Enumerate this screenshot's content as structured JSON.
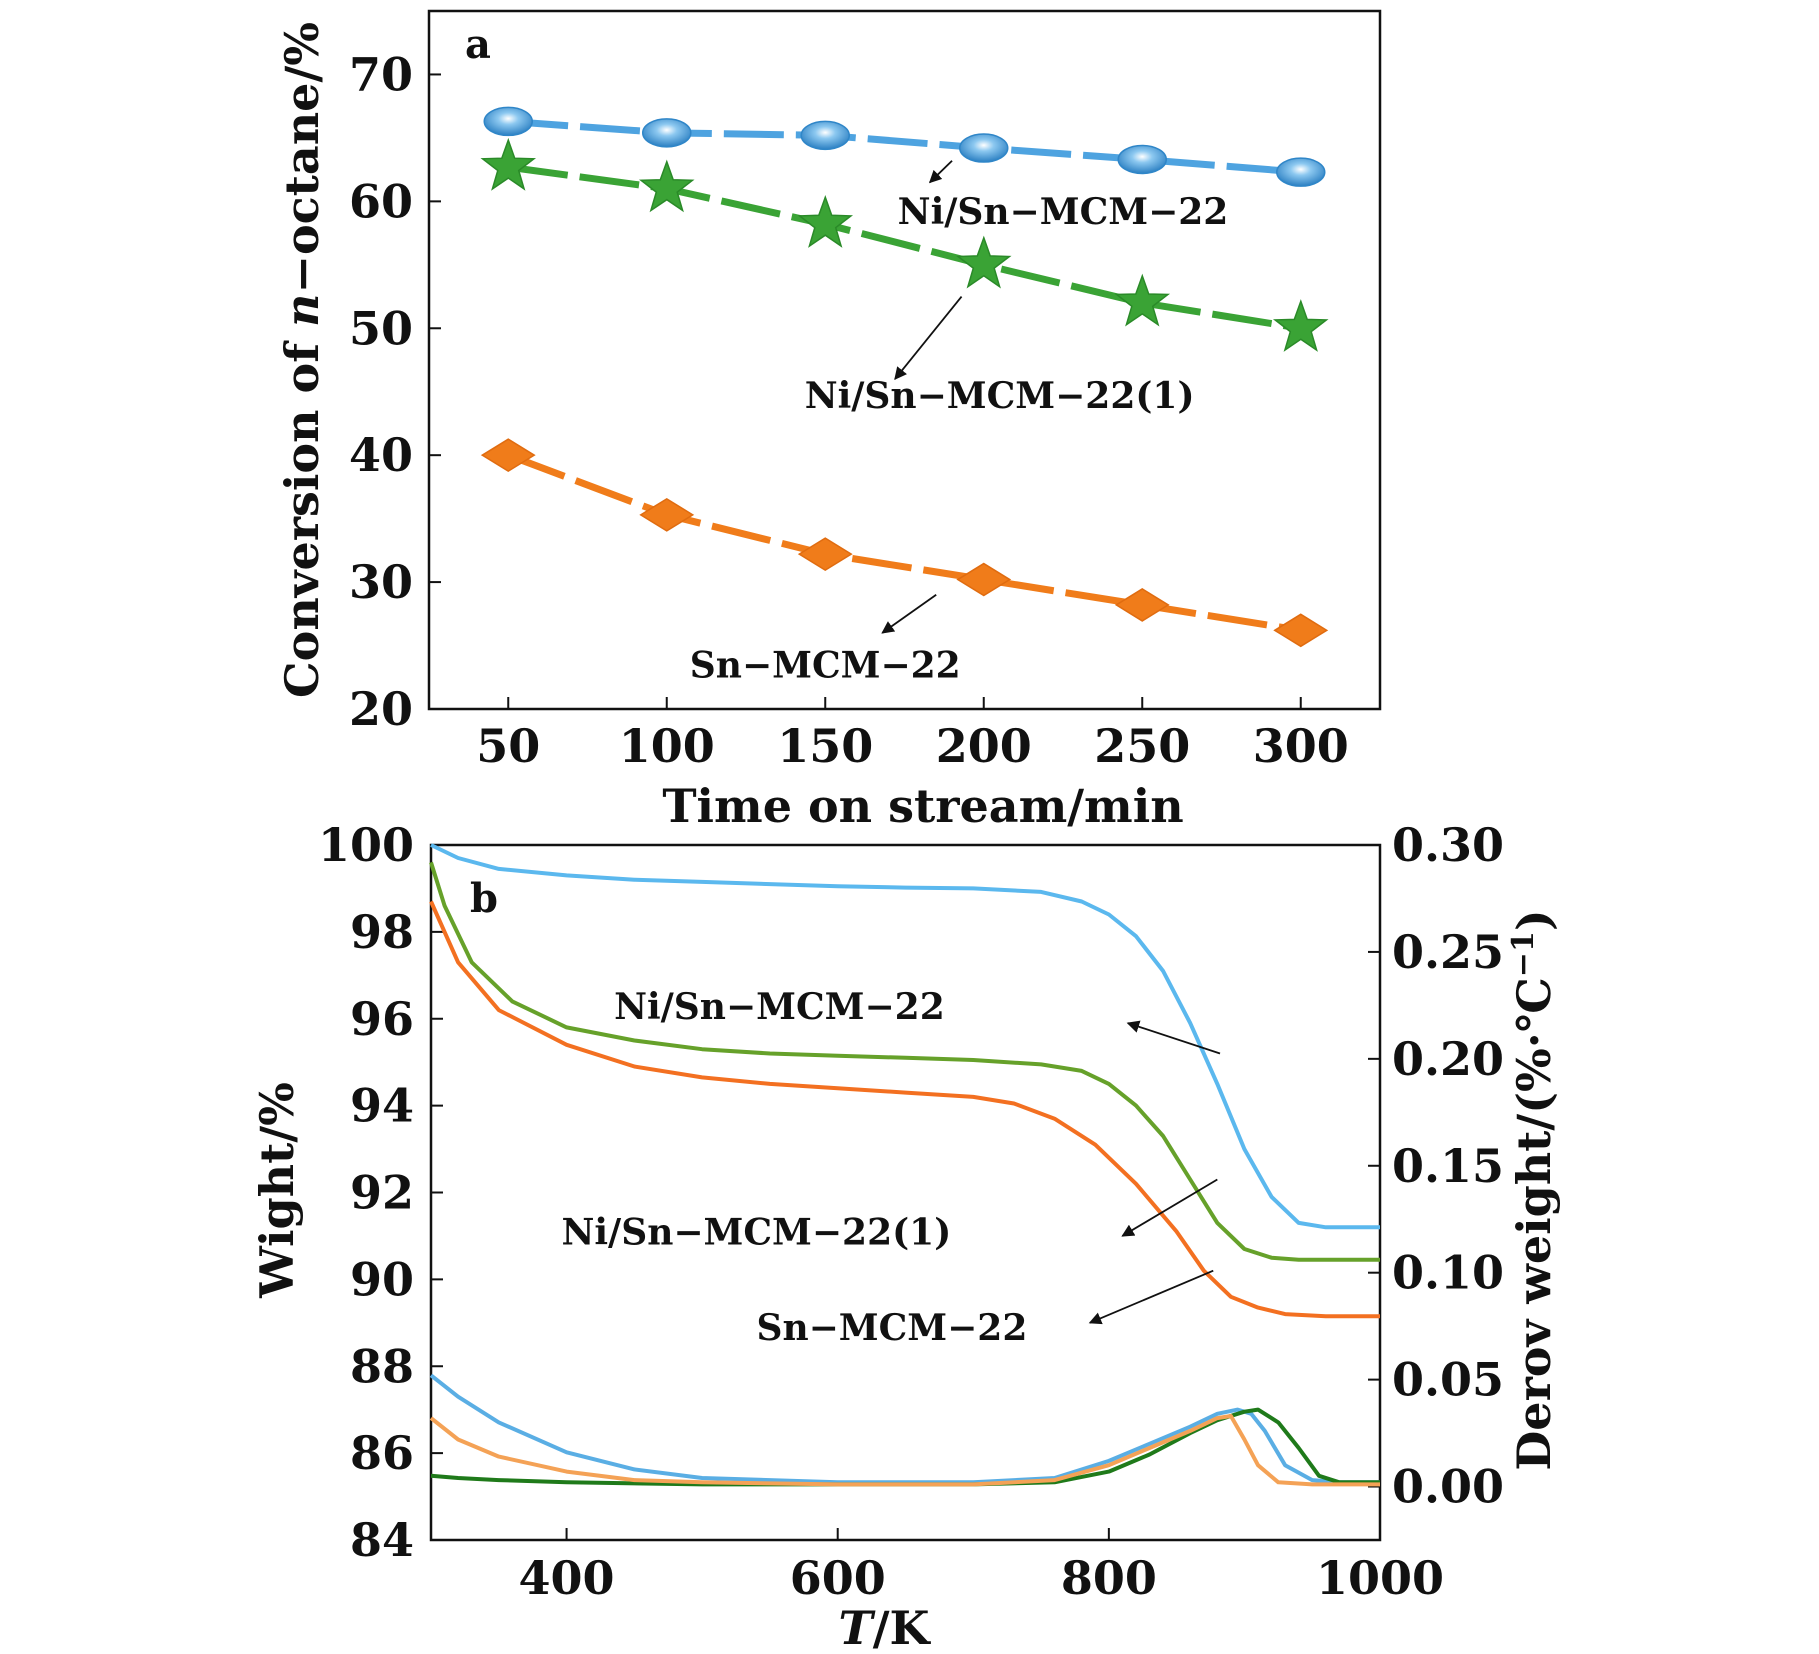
{
  "colors": {
    "ni_sn": "#4ea3e0",
    "ni_sn_1": "#3aa335",
    "sn": "#f07c1a",
    "deriv_ni_sn": "#5aaee4",
    "deriv_ni_sn_1": "#1f7a1a",
    "deriv_sn": "#f4a256",
    "wt_ni_sn": "#5bb8ee",
    "wt_ni_sn_1": "#66a12a",
    "wt_sn": "#f37021"
  },
  "chart_data": [
    {
      "panel": "a",
      "type": "line",
      "xlabel": "Time on stream/min",
      "ylabel_parts": [
        "Conversion of ",
        "n",
        "−octane/%"
      ],
      "xlim": [
        25,
        325
      ],
      "ylim": [
        20,
        75
      ],
      "xticks": [
        50,
        100,
        150,
        200,
        250,
        300
      ],
      "yticks": [
        20,
        30,
        40,
        50,
        60,
        70
      ],
      "x": [
        50,
        100,
        150,
        200,
        250,
        300
      ],
      "series": [
        {
          "name": "Ni/Sn−MCM−22",
          "marker": "circle",
          "color_key": "ni_sn",
          "values": [
            66.3,
            65.4,
            65.2,
            64.2,
            63.3,
            62.3
          ]
        },
        {
          "name": "Ni/Sn−MCM−22(1)",
          "marker": "star",
          "color_key": "ni_sn_1",
          "values": [
            62.7,
            61.0,
            58.2,
            55.0,
            52.0,
            50.0
          ]
        },
        {
          "name": "Sn−MCM−22",
          "marker": "diamond",
          "color_key": "sn",
          "values": [
            40.0,
            35.3,
            32.2,
            30.2,
            28.2,
            26.2
          ]
        }
      ],
      "annotations": [
        {
          "text": "Ni/Sn−MCM−22",
          "tx": 225,
          "ty": 58.2,
          "ax0": 190,
          "ay0": 63.2,
          "ax1": 183,
          "ay1": 61.5
        },
        {
          "text": "Ni/Sn−MCM−22(1)",
          "tx": 205,
          "ty": 43.7,
          "ax0": 193,
          "ay0": 52.5,
          "ax1": 172,
          "ay1": 46.0
        },
        {
          "text": "Sn−MCM−22",
          "tx": 150,
          "ty": 22.5,
          "ax0": 185,
          "ay0": 29.0,
          "ax1": 168,
          "ay1": 26.0
        }
      ]
    },
    {
      "panel": "b",
      "type": "line",
      "xlabel_parts": [
        "T",
        "/K"
      ],
      "ylabel_left": "Wight/%",
      "ylabel_right_parts": [
        "Derov weight/(%·℃",
        "−1",
        ")"
      ],
      "xlim": [
        300,
        1000
      ],
      "ylim_left": [
        84,
        100
      ],
      "ylim_right": [
        -0.025,
        0.3
      ],
      "xticks": [
        400,
        600,
        800,
        1000
      ],
      "yticks_left": [
        84,
        86,
        88,
        90,
        92,
        94,
        96,
        98,
        100
      ],
      "yticks_right": [
        "0.00",
        "0.05",
        "0.10",
        "0.15",
        "0.20",
        "0.25",
        "0.30"
      ],
      "weight_series": [
        {
          "name": "Ni/Sn−MCM−22",
          "color_key": "wt_ni_sn",
          "x": [
            300,
            320,
            350,
            400,
            450,
            500,
            550,
            600,
            650,
            700,
            750,
            780,
            800,
            820,
            840,
            860,
            880,
            900,
            920,
            940,
            960,
            980,
            1000
          ],
          "y": [
            100,
            99.7,
            99.45,
            99.3,
            99.2,
            99.15,
            99.1,
            99.05,
            99.02,
            99.0,
            98.92,
            98.7,
            98.4,
            97.9,
            97.1,
            95.9,
            94.5,
            93.0,
            91.9,
            91.3,
            91.2,
            91.2,
            91.2
          ]
        },
        {
          "name": "Ni/Sn−MCM−22(1)",
          "color_key": "wt_ni_sn_1",
          "x": [
            300,
            310,
            330,
            360,
            400,
            450,
            500,
            550,
            600,
            650,
            700,
            750,
            780,
            800,
            820,
            840,
            860,
            880,
            900,
            920,
            940,
            960,
            980,
            1000
          ],
          "y": [
            99.6,
            98.6,
            97.3,
            96.4,
            95.8,
            95.5,
            95.3,
            95.2,
            95.15,
            95.1,
            95.05,
            94.95,
            94.8,
            94.5,
            94.0,
            93.3,
            92.3,
            91.3,
            90.7,
            90.5,
            90.45,
            90.45,
            90.45,
            90.45
          ]
        },
        {
          "name": "Sn−MCM−22",
          "color_key": "wt_sn",
          "x": [
            300,
            320,
            350,
            400,
            450,
            500,
            550,
            600,
            650,
            700,
            730,
            760,
            790,
            820,
            850,
            870,
            890,
            910,
            930,
            960,
            1000
          ],
          "y": [
            98.7,
            97.3,
            96.2,
            95.4,
            94.9,
            94.65,
            94.5,
            94.4,
            94.3,
            94.2,
            94.05,
            93.7,
            93.1,
            92.2,
            91.1,
            90.2,
            89.6,
            89.35,
            89.2,
            89.15,
            89.15
          ]
        }
      ],
      "deriv_series": [
        {
          "name": "Ni/Sn−MCM−22",
          "color_key": "deriv_ni_sn",
          "x": [
            300,
            320,
            350,
            400,
            450,
            500,
            600,
            700,
            760,
            800,
            830,
            860,
            880,
            895,
            905,
            915,
            930,
            950,
            970,
            1000
          ],
          "y": [
            0.052,
            0.042,
            0.03,
            0.016,
            0.008,
            0.004,
            0.002,
            0.002,
            0.004,
            0.012,
            0.02,
            0.028,
            0.034,
            0.036,
            0.034,
            0.026,
            0.01,
            0.003,
            0.002,
            0.002
          ]
        },
        {
          "name": "Ni/Sn−MCM−22(1)",
          "color_key": "deriv_ni_sn_1",
          "x": [
            300,
            320,
            350,
            400,
            500,
            600,
            700,
            760,
            800,
            830,
            860,
            880,
            900,
            910,
            925,
            940,
            955,
            970,
            1000
          ],
          "y": [
            0.005,
            0.004,
            0.003,
            0.002,
            0.001,
            0.001,
            0.001,
            0.002,
            0.007,
            0.015,
            0.025,
            0.031,
            0.035,
            0.036,
            0.03,
            0.018,
            0.005,
            0.002,
            0.002
          ]
        },
        {
          "name": "Sn−MCM−22",
          "color_key": "deriv_sn",
          "x": [
            300,
            320,
            350,
            400,
            450,
            500,
            600,
            700,
            760,
            800,
            830,
            860,
            880,
            890,
            900,
            910,
            925,
            950,
            1000
          ],
          "y": [
            0.032,
            0.022,
            0.014,
            0.007,
            0.003,
            0.002,
            0.001,
            0.001,
            0.003,
            0.01,
            0.018,
            0.026,
            0.032,
            0.033,
            0.022,
            0.01,
            0.002,
            0.001,
            0.001
          ]
        }
      ],
      "annotations": [
        {
          "text": "Ni/Sn−MCM−22",
          "tx": 557,
          "ty": 96.0,
          "ax0": 882,
          "ay0": 95.2,
          "ax1": 814,
          "ay1": 95.9
        },
        {
          "text": "Ni/Sn−MCM−22(1)",
          "tx": 540,
          "ty": 90.8,
          "ax0": 880,
          "ay0": 92.3,
          "ax1": 810,
          "ay1": 91.0
        },
        {
          "text": "Sn−MCM−22",
          "tx": 640,
          "ty": 88.6,
          "ax0": 877,
          "ay0": 90.2,
          "ax1": 786,
          "ay1": 89.0
        }
      ]
    }
  ]
}
